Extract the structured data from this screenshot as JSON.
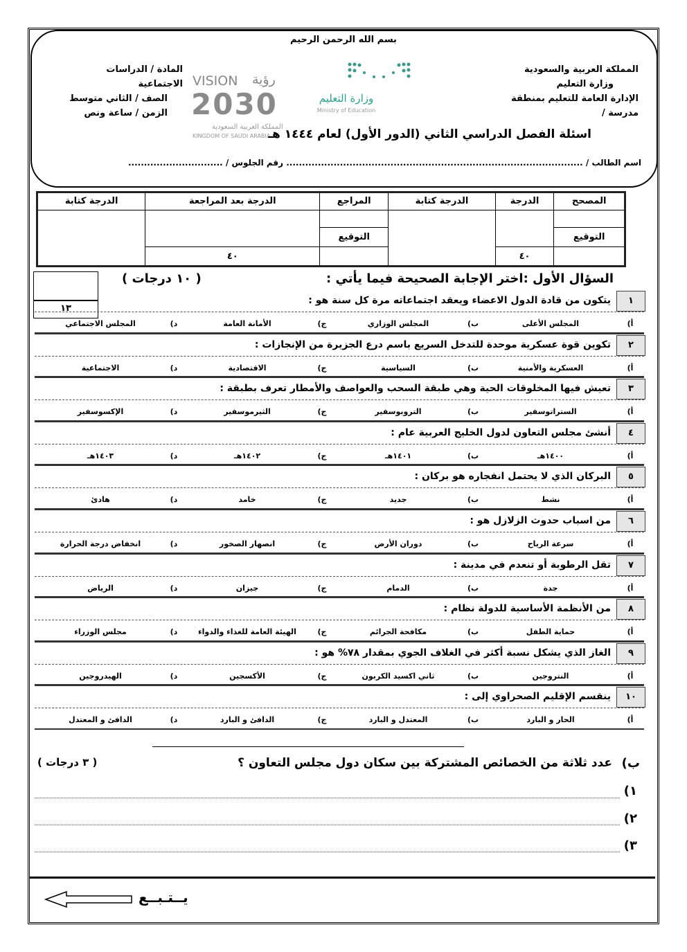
{
  "header": {
    "basmala": "بسم الله الرحمن الرحيم",
    "right_lines": [
      "المملكة العربية والسعودية",
      "وزارة التعليم",
      "الإدارة العامة للتعليم بمنطقة",
      "مدرسة /"
    ],
    "left_lines": [
      "المادة / الدراسات الاجتماعية",
      "الصف / الثاني متوسط",
      "الزمن / ساعة ونص"
    ],
    "exam_title": "اسئلة الفصل الدراسي الثاني (الدور الأول) لعام ١٤٤٤ هـ",
    "student_name": "اسم الطالب / .............................................................................................. رقم الجلوس / ..............................",
    "ministry_logo": {
      "ar": "وزارة التعليم",
      "en": "Ministry of Education"
    },
    "vision_logo": {
      "vision": "VISION",
      "ar": "رؤية",
      "year": "2030",
      "kingdom_ar": "المملكة العربية السعودية",
      "kingdom_en": "KINGDOM OF SAUDI ARABIA"
    }
  },
  "grades_table": {
    "headers": [
      "المصحح",
      "الدرجة",
      "الدرجة كتابة",
      "المراجع",
      "الدرجة بعد المراجعة",
      "الدرجة كتابة"
    ],
    "signature_label": "التوقيع",
    "total": "٤٠"
  },
  "q1": {
    "title": "السؤال الأول :اختر الإجابة الصحيحة فيما يأتي :",
    "marks": "( ١٠ درجات )",
    "score_box": "١٣",
    "letters": [
      "أ)",
      "ب)",
      "ج)",
      "د)"
    ],
    "questions": [
      {
        "num": "١",
        "text": "يتكون من قادة الدول الاعضاء ويعقد اجتماعاته مرة كل سنة هو :",
        "options": [
          "المجلس الأعلى",
          "المجلس الوزاري",
          "الأمانة العامة",
          "المجلس الاجتماعي"
        ]
      },
      {
        "num": "٢",
        "text": "تكوين قوة عسكرية موحدة للتدخل السريع باسم درع الجزيرة من الإنجازات :",
        "options": [
          "العسكرية والأمنية",
          "السياسية",
          "الاقتصادية",
          "الاجتماعية"
        ]
      },
      {
        "num": "٣",
        "text": "تعيش فيها المخلوقات الحية وهي طبقة السحب والعواصف والأمطار تعرف بطبقة :",
        "options": [
          "الستراتوسفير",
          "التروبوسفير",
          "الثيرموسفير",
          "الإكسوسفير"
        ]
      },
      {
        "num": "٤",
        "text": "أنشئ مجلس التعاون لدول الخليج العربية عام :",
        "options": [
          "١٤٠٠هـ",
          "١٤٠١هـ",
          "١٤٠٢هـ",
          "١٤٠٣هـ"
        ]
      },
      {
        "num": "٥",
        "text": "البركان الذي لا يحتمل انفجاره هو بركان :",
        "options": [
          "نشط",
          "جديد",
          "خامد",
          "هادئ"
        ]
      },
      {
        "num": "٦",
        "text": "من اسباب حدوث الزلازل هو :",
        "options": [
          "سرعة الرياح",
          "دوران الأرض",
          "انصهار الصخور",
          "انخفاض درجة الحرارة"
        ]
      },
      {
        "num": "٧",
        "text": "تقل الرطوبة أو تنعدم في مدينة :",
        "options": [
          "جدة",
          "الدمام",
          "جيزان",
          "الرياض"
        ]
      },
      {
        "num": "٨",
        "text": "من الأنظمة الأساسية للدولة نظام :",
        "options": [
          "حماية الطفل",
          "مكافحة الجرائم",
          "الهيئة العامة للغذاء والدواء",
          "مجلس الوزراء"
        ]
      },
      {
        "num": "٩",
        "text": "الغاز الذي يشكل نسبة أكثر في الغلاف الجوي بمقدار ٧٨% هو :",
        "options": [
          "النتروجين",
          "ثاني اكسيد الكربون",
          "الأكسجين",
          "الهيدروجين"
        ]
      },
      {
        "num": "١٠",
        "text": "ينقسم الإقليم الصحراوي إلى :",
        "options": [
          "الحار و البارد",
          "المعتدل و البارد",
          "الدافئ و البارد",
          "الدافئ و المعتدل"
        ]
      }
    ]
  },
  "part_b": {
    "label": "ب)",
    "text": "عدد ثلاثة من الخصائص المشتركة بين سكان دول مجلس التعاون ؟",
    "marks": "( ٣ درجات )",
    "line_labels": [
      "١)",
      "٢)",
      "٣)"
    ]
  },
  "footer": {
    "continue": "يــتـبــع",
    "arrow_icon": "left-arrow-outline"
  }
}
